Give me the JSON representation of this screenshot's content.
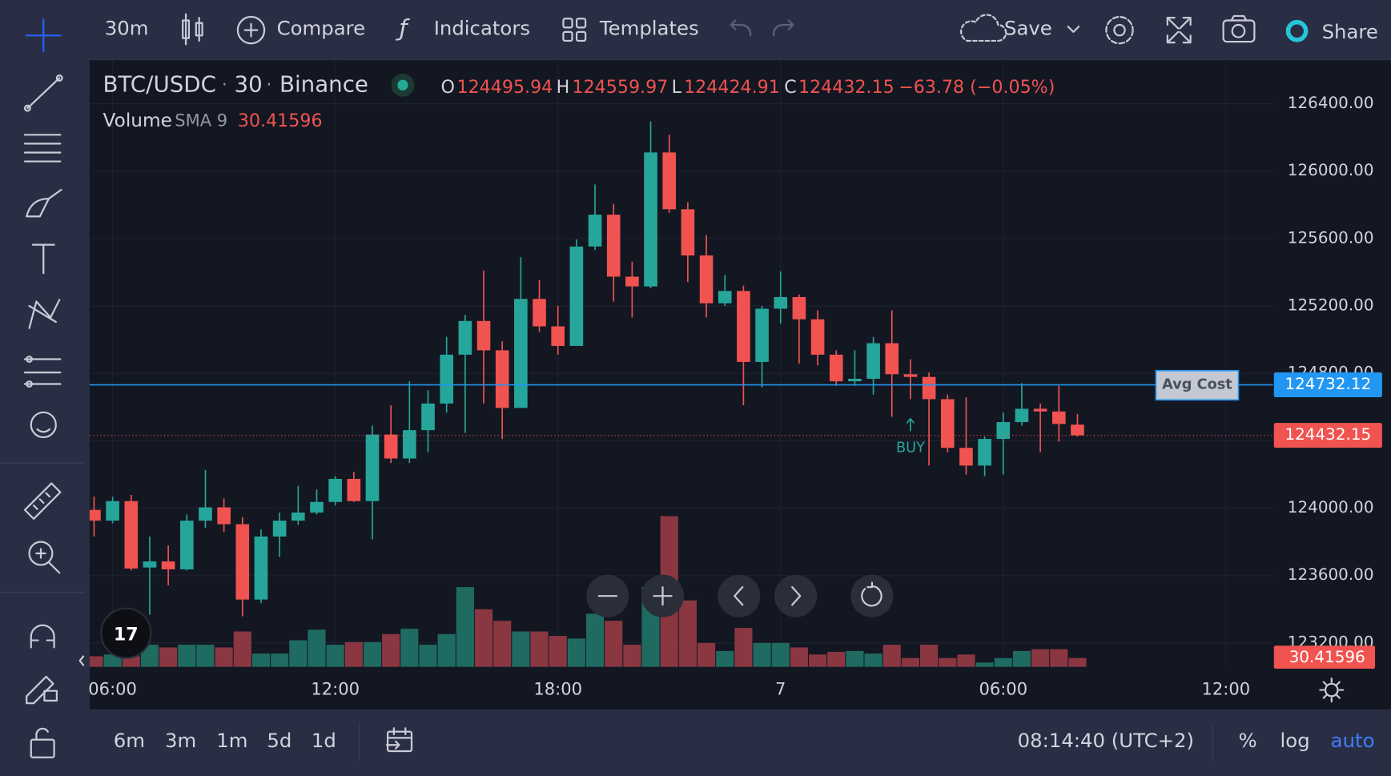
{
  "toolbar": {
    "interval": "30m",
    "compare": "Compare",
    "indicators": "Indicators",
    "templates": "Templates",
    "save": "Save",
    "share": "Share"
  },
  "chart_data": {
    "type": "candlestick",
    "symbol": "BTC/USDC",
    "separator": "·",
    "interval": "30",
    "exchange": "Binance",
    "ohlc_labels": {
      "open": "O",
      "high": "H",
      "low": "L",
      "close": "C"
    },
    "change": "−63.78 (−0.05%)",
    "x": [
      5.5,
      6,
      6.5,
      7,
      7.5,
      8,
      8.5,
      9,
      9.5,
      10,
      10.5,
      11,
      11.5,
      12,
      12.5,
      13,
      13.5,
      14,
      14.5,
      15,
      15.5,
      16,
      16.5,
      17,
      17.5,
      18,
      18.5,
      19,
      19.5,
      20,
      20.5,
      21,
      21.5,
      22,
      22.5,
      23,
      23.5,
      24,
      24.5,
      25,
      25.5,
      26,
      26.5,
      27,
      27.5,
      28,
      28.5,
      29,
      29.5,
      30,
      30.5,
      31,
      31.5,
      32
    ],
    "open": [
      123990,
      123926,
      124042,
      123648,
      123684,
      123637,
      123926,
      124005,
      123905,
      123458,
      123832,
      123926,
      123974,
      124037,
      124174,
      124042,
      124437,
      124295,
      124463,
      124621,
      124911,
      125111,
      124937,
      124595,
      125242,
      125079,
      124963,
      125553,
      125742,
      125374,
      125316,
      126111,
      125774,
      125500,
      125216,
      125289,
      124868,
      125184,
      125253,
      125121,
      124911,
      124753,
      124768,
      124979,
      124795,
      124779,
      124647,
      124358,
      124253,
      124411,
      124511,
      124590,
      124574,
      124495.94
    ],
    "high": [
      124068,
      124068,
      124079,
      123832,
      123779,
      123963,
      124226,
      124058,
      123947,
      123874,
      123974,
      124132,
      124111,
      124190,
      124216,
      124490,
      124611,
      124753,
      124700,
      125016,
      125147,
      125411,
      124990,
      125490,
      125353,
      125200,
      125595,
      125921,
      125805,
      125463,
      126295,
      126216,
      125816,
      125621,
      125384,
      125321,
      125200,
      125405,
      125268,
      125174,
      124937,
      124937,
      125016,
      125174,
      124884,
      124805,
      124674,
      124658,
      124426,
      124568,
      124742,
      124621,
      124726,
      124559.97
    ],
    "low": [
      123832,
      123910,
      123630,
      123368,
      123542,
      123630,
      123884,
      123858,
      123358,
      123437,
      123711,
      123900,
      123963,
      124016,
      124037,
      123816,
      124268,
      124268,
      124332,
      124568,
      124447,
      124621,
      124411,
      124595,
      125047,
      124911,
      124963,
      125532,
      125226,
      125132,
      125305,
      125753,
      125342,
      125132,
      125200,
      124611,
      124716,
      125095,
      124858,
      124847,
      124726,
      124726,
      124674,
      124542,
      124647,
      124253,
      124332,
      124200,
      124190,
      124200,
      124490,
      124332,
      124395,
      124424.91
    ],
    "close": [
      123926,
      124042,
      123642,
      123684,
      123637,
      123926,
      124005,
      123905,
      123458,
      123832,
      123926,
      123974,
      124037,
      124174,
      124042,
      124437,
      124295,
      124463,
      124621,
      124911,
      125111,
      124937,
      124595,
      125242,
      125079,
      124963,
      125553,
      125742,
      125374,
      125316,
      126111,
      125774,
      125500,
      125216,
      125289,
      124868,
      125184,
      125253,
      125121,
      124911,
      124753,
      124768,
      124979,
      124795,
      124779,
      124647,
      124358,
      124253,
      124411,
      124511,
      124590,
      124574,
      124500,
      124432.15
    ],
    "volume": [
      12,
      14,
      12,
      25,
      22,
      25,
      25,
      22,
      40,
      15,
      15,
      30,
      42,
      25,
      28,
      28,
      37,
      43,
      25,
      37,
      90,
      65,
      52,
      40,
      40,
      35,
      32,
      60,
      52,
      25,
      90,
      170,
      75,
      27,
      18,
      44,
      27,
      27,
      22,
      14,
      17,
      18,
      15,
      25,
      10,
      25,
      10,
      14,
      5,
      10,
      18,
      20,
      20,
      10
    ],
    "up_color": "#26a69a",
    "down_color": "#f05350",
    "volume_up_color": "#1f6b62",
    "volume_down_color": "#8a3742",
    "volume_indicator": {
      "name": "Volume",
      "study": "SMA 9",
      "value": 30.41596
    },
    "xlim": [
      5.38,
      37.27
    ],
    "xticks": [
      {
        "value": 6,
        "label": "06:00"
      },
      {
        "value": 12,
        "label": "12:00"
      },
      {
        "value": 18,
        "label": "18:00"
      },
      {
        "value": 24,
        "label": "7"
      },
      {
        "value": 30,
        "label": "06:00"
      },
      {
        "value": 36,
        "label": "12:00"
      }
    ],
    "ylim": [
      123058,
      126658
    ],
    "yticks": [
      {
        "value": 123200,
        "label": "123200.00"
      },
      {
        "value": 123600,
        "label": "123600.00"
      },
      {
        "value": 124000,
        "label": "124000.00"
      },
      {
        "value": 124400,
        "label": "124400.00"
      },
      {
        "value": 124800,
        "label": "124800.00"
      },
      {
        "value": 125200,
        "label": "125200.00"
      },
      {
        "value": 125600,
        "label": "125600.00"
      },
      {
        "value": 126000,
        "label": "126000.00"
      },
      {
        "value": 126400,
        "label": "126400.00"
      }
    ],
    "grid": true,
    "avg_cost": {
      "label": "Avg Cost",
      "value": 124732.12,
      "color": "#2196f3"
    },
    "marker": {
      "x": 27.5,
      "label": "BUY",
      "color": "#26a69a"
    }
  },
  "status_bar": {
    "ranges": [
      "6m",
      "3m",
      "1m",
      "5d",
      "1d"
    ],
    "clock": "08:14:40 (UTC+2)",
    "percent": "%",
    "log": "log",
    "auto": "auto"
  }
}
